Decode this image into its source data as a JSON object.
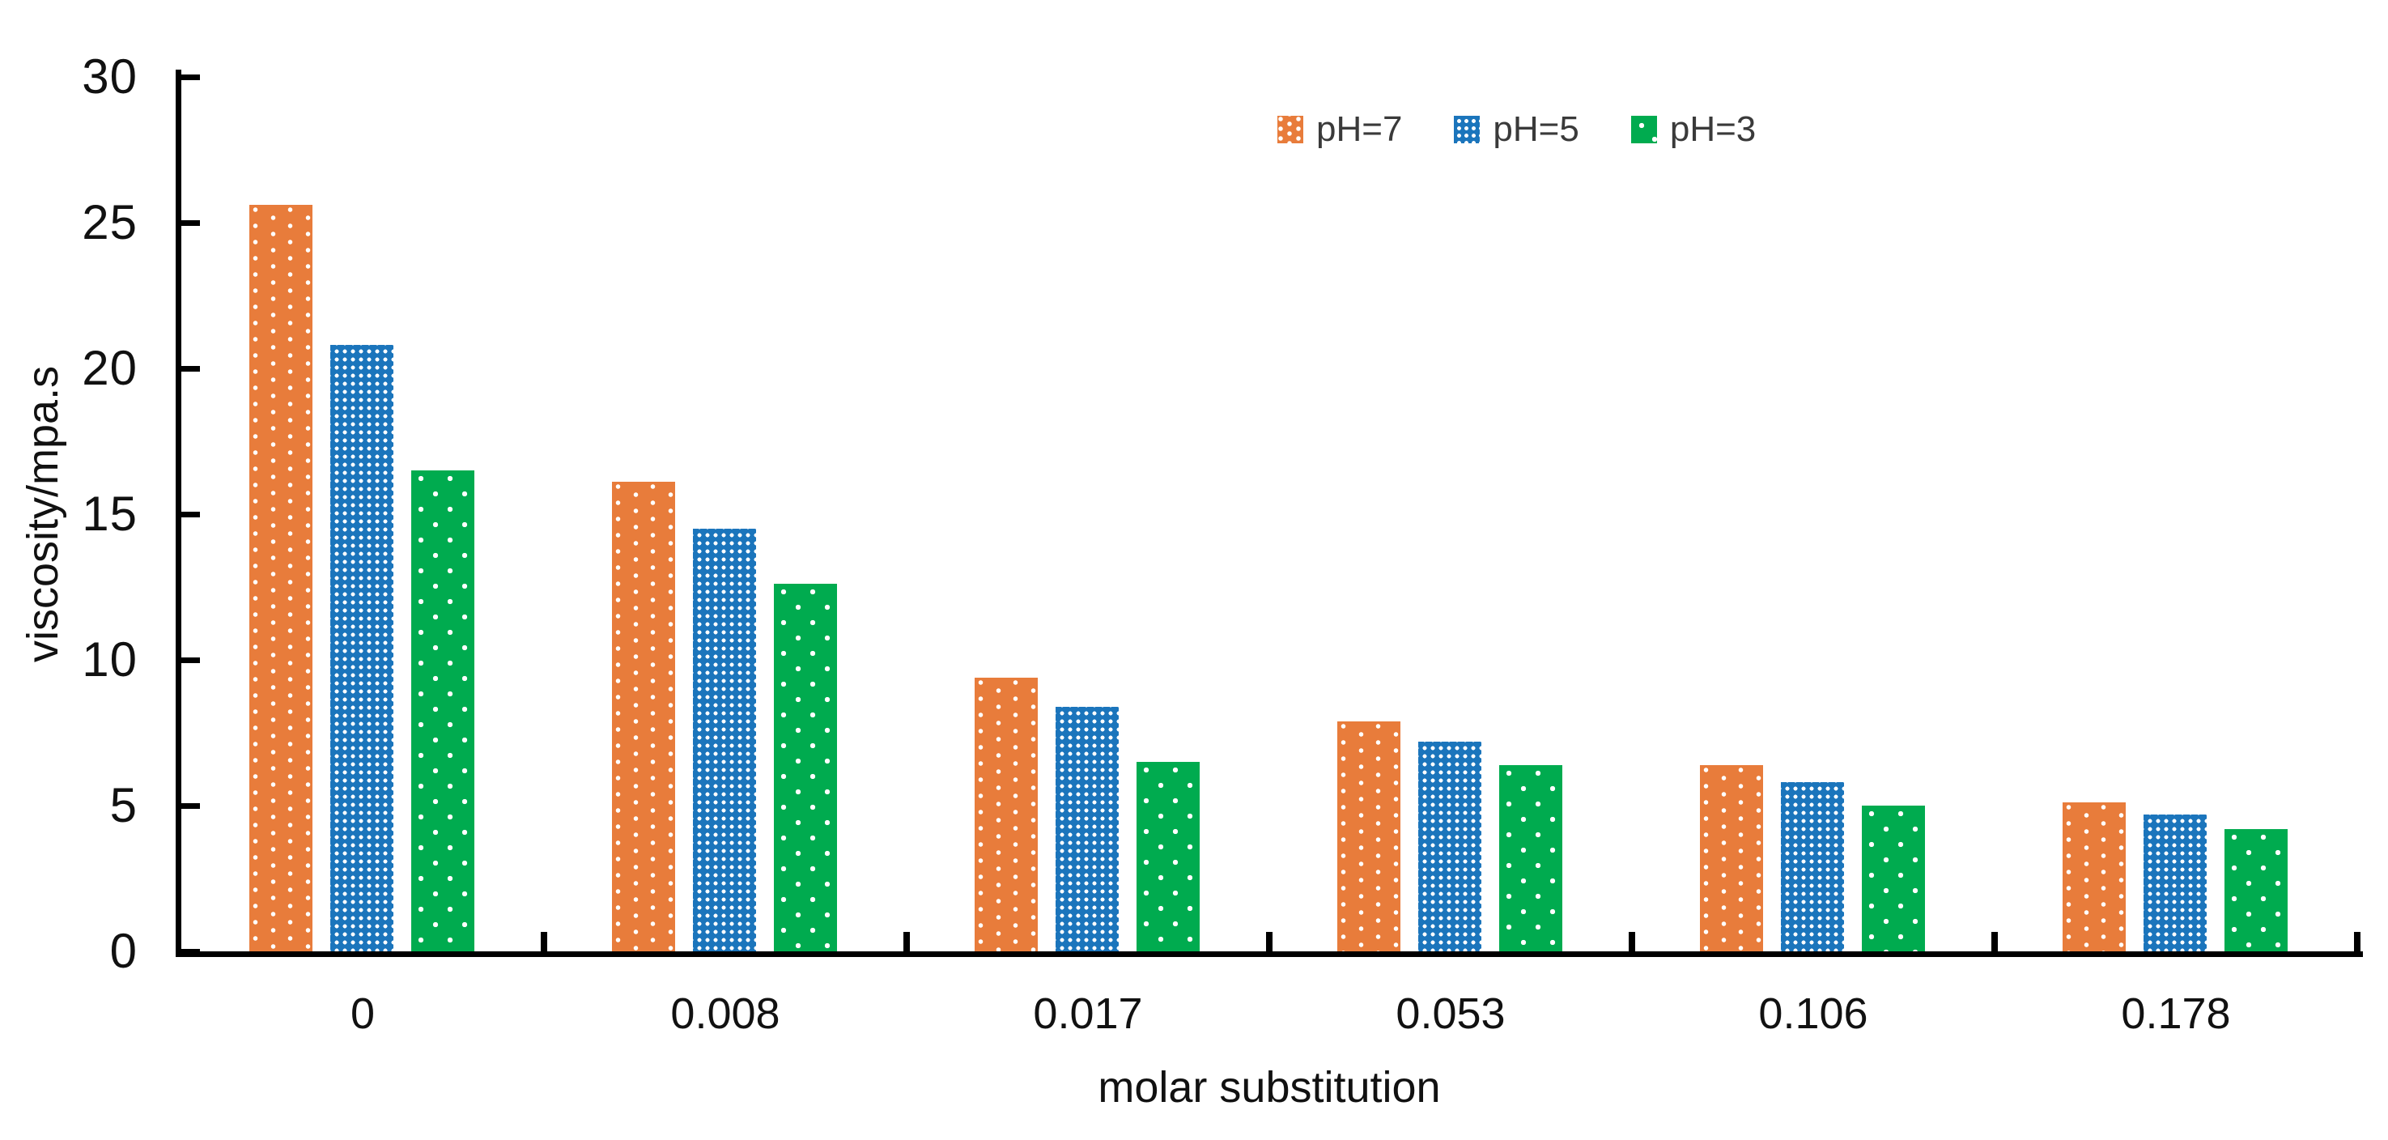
{
  "chart_data": {
    "type": "bar",
    "title": "",
    "xlabel": "molar substitution",
    "ylabel": "viscosity/mpa.s",
    "categories": [
      "0",
      "0.008",
      "0.017",
      "0.053",
      "0.106",
      "0.178"
    ],
    "series": [
      {
        "name": "pH=7",
        "color": "#E87C3B",
        "pattern": "diamond-dots",
        "values": [
          25.6,
          16.1,
          9.4,
          7.9,
          6.4,
          5.1
        ]
      },
      {
        "name": "pH=5",
        "color": "#1B75BC",
        "pattern": "grid-dots",
        "values": [
          20.8,
          14.5,
          8.4,
          7.2,
          5.8,
          4.7
        ]
      },
      {
        "name": "pH=3",
        "color": "#00AB4F",
        "pattern": "sparse-dots",
        "values": [
          16.5,
          12.6,
          6.5,
          6.4,
          5.0,
          4.2
        ]
      }
    ],
    "ylim": [
      0,
      30
    ],
    "yticks": [
      0,
      5,
      10,
      15,
      20,
      25,
      30
    ],
    "grid": false,
    "legend_position": "top-center",
    "legend_entries": [
      "pH=7",
      "pH=5",
      "pH=3"
    ],
    "colors": {
      "axis": "#000000",
      "tick_text": "#111111",
      "legend_text": "#3a3a3a",
      "background": "#ffffff"
    }
  }
}
